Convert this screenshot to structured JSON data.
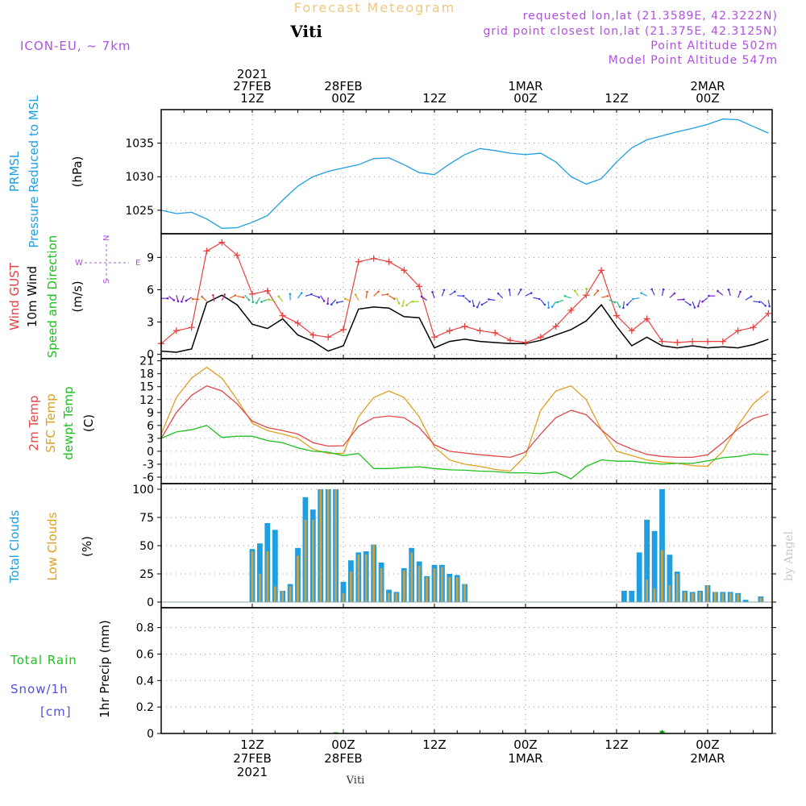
{
  "header": {
    "title": "Forecast Meteogram",
    "place": "Viti",
    "model": "ICON-EU, ~ 7km",
    "requested": "requested lon,lat (21.3589E, 42.3222N)",
    "gridpoint": "grid point closest lon,lat (21.375E, 42.3125N)",
    "point_alt": "Point Altitude 502m",
    "model_alt": "Model Point Altitude 547m"
  },
  "footer_place": "Viti",
  "watermark": "by Angel",
  "time_axis": {
    "ticks": [
      {
        "t": 12,
        "lines": [
          "2021",
          "27FEB",
          "12Z"
        ],
        "bottom": [
          "12Z",
          "27FEB",
          "2021"
        ]
      },
      {
        "t": 24,
        "lines": [
          "28FEB",
          "00Z"
        ],
        "bottom": [
          "00Z",
          "28FEB"
        ]
      },
      {
        "t": 36,
        "lines": [
          "12Z"
        ],
        "bottom": [
          "12Z"
        ]
      },
      {
        "t": 48,
        "lines": [
          "1MAR",
          "00Z"
        ],
        "bottom": [
          "00Z",
          "1MAR"
        ]
      },
      {
        "t": 60,
        "lines": [
          "12Z"
        ],
        "bottom": [
          "12Z"
        ]
      },
      {
        "t": 72,
        "lines": [
          "2MAR",
          "00Z"
        ],
        "bottom": [
          "00Z",
          "2MAR"
        ]
      }
    ]
  },
  "panels": {
    "pressure": {
      "labels": [
        "PRMSL",
        "Pressure Reduced to MSL"
      ],
      "unit": "(hPa)",
      "yticks": [
        1025,
        1030,
        1035
      ]
    },
    "wind": {
      "labels": [
        "Wind GUST",
        "10m Wind",
        "Speed and Direction"
      ],
      "unit": "(m/s)",
      "yticks": [
        0,
        3,
        6,
        9
      ],
      "compass": {
        "n": "N",
        "s": "S",
        "w": "W",
        "e": "E"
      }
    },
    "temp": {
      "labels": [
        "2m Temp",
        "SFC Temp",
        "dewpt Temp"
      ],
      "unit": "(C)",
      "yticks": [
        -6,
        -3,
        0,
        3,
        6,
        9,
        12,
        15,
        18,
        21
      ]
    },
    "clouds": {
      "labels": [
        "Total Clouds",
        "Low Clouds"
      ],
      "unit": "(%)",
      "yticks": [
        0,
        25,
        50,
        75,
        100
      ]
    },
    "precip": {
      "labels": [
        "Total  Rain",
        "Snow/1h",
        "[cm]"
      ],
      "unit": "1hr Precip (mm)",
      "yticks": [
        "0",
        "0.2",
        "0.4",
        "0.6",
        "0.8"
      ]
    }
  },
  "colors": {
    "pressure": "#1f9fe0",
    "gust": "#e84040",
    "wind": "#000000",
    "temp2m": "#e04848",
    "sfc": "#e0a020",
    "dewpt": "#20c020",
    "total": "#1f9fe0",
    "low": "#d0a040",
    "title": "#f0c878",
    "info": "#b050e0",
    "rain": "#20c020",
    "snow": "#5050e0"
  },
  "chart_data": [
    {
      "type": "line",
      "name": "pressure",
      "x_unit": "hours since 27FEB 00Z",
      "ylim": [
        1021.5,
        1040
      ],
      "series": [
        {
          "x": [
            0,
            2,
            4,
            6,
            8,
            10,
            12,
            14,
            16,
            18,
            20,
            22,
            24,
            26,
            28,
            30,
            32,
            34,
            36,
            38,
            40,
            42,
            44,
            46,
            48,
            50,
            52,
            54,
            56,
            58,
            60,
            62,
            64,
            66,
            68,
            70,
            72,
            74,
            76,
            78,
            80
          ],
          "values": [
            1025,
            1024.5,
            1024.7,
            1023.7,
            1022.3,
            1022.4,
            1023.2,
            1024.2,
            1026.5,
            1028.6,
            1030,
            1030.8,
            1031.3,
            1031.8,
            1032.7,
            1032.8,
            1031.8,
            1030.6,
            1030.3,
            1031.9,
            1033.3,
            1034.2,
            1033.9,
            1033.5,
            1033.3,
            1033.5,
            1032.2,
            1030,
            1028.9,
            1029.7,
            1032.2,
            1034.3,
            1035.5,
            1036.1,
            1036.7,
            1037.2,
            1037.8,
            1038.6,
            1038.5,
            1037.5,
            1036.5
          ]
        }
      ]
    },
    {
      "type": "line",
      "name": "wind",
      "x_unit": "hours since 27FEB 00Z",
      "ylim": [
        -0.4,
        11.2
      ],
      "series": [
        {
          "name": "Wind GUST",
          "x": [
            0,
            2,
            4,
            6,
            8,
            10,
            12,
            14,
            16,
            18,
            20,
            22,
            24,
            26,
            28,
            30,
            32,
            34,
            36,
            38,
            40,
            42,
            44,
            46,
            48,
            50,
            52,
            54,
            56,
            58,
            60,
            62,
            64,
            66,
            68,
            70,
            72,
            74,
            76,
            78,
            80
          ],
          "values": [
            1,
            2.2,
            2.5,
            9.6,
            10.4,
            9.2,
            5.6,
            5.9,
            3.6,
            2.9,
            1.8,
            1.6,
            2.3,
            8.6,
            8.9,
            8.6,
            7.8,
            6.3,
            1.6,
            2.2,
            2.6,
            2.2,
            2,
            1.3,
            1.1,
            1.6,
            2.6,
            4.1,
            5.5,
            7.8,
            3.6,
            2.2,
            3.3,
            1.2,
            1.1,
            1.2,
            1.2,
            1.2,
            2.2,
            2.5,
            3.8
          ]
        },
        {
          "name": "10m Wind",
          "x": [
            0,
            2,
            4,
            6,
            8,
            10,
            12,
            14,
            16,
            18,
            20,
            22,
            24,
            26,
            28,
            30,
            32,
            34,
            36,
            38,
            40,
            42,
            44,
            46,
            48,
            50,
            52,
            54,
            56,
            58,
            60,
            62,
            64,
            66,
            68,
            70,
            72,
            74,
            76,
            78,
            80
          ],
          "values": [
            0.3,
            0.2,
            0.5,
            4.8,
            5.5,
            4.6,
            2.8,
            2.4,
            3.3,
            1.8,
            1.2,
            0.3,
            0.8,
            4.2,
            4.4,
            4.3,
            3.5,
            3.4,
            0.6,
            1.2,
            1.4,
            1.2,
            1.1,
            1,
            1,
            1.3,
            1.8,
            2.3,
            3.1,
            4.6,
            2.6,
            0.8,
            1.6,
            0.8,
            0.6,
            0.8,
            0.6,
            0.7,
            0.6,
            0.9,
            1.4
          ]
        }
      ]
    },
    {
      "type": "line",
      "name": "temperature",
      "x_unit": "hours since 27FEB 00Z",
      "ylim": [
        -7.5,
        21.5
      ],
      "series": [
        {
          "name": "2m Temp",
          "x": [
            0,
            2,
            4,
            6,
            8,
            10,
            12,
            14,
            16,
            18,
            20,
            22,
            24,
            26,
            28,
            30,
            32,
            34,
            36,
            38,
            40,
            42,
            44,
            46,
            48,
            50,
            52,
            54,
            56,
            58,
            60,
            62,
            64,
            66,
            68,
            70,
            72,
            74,
            76,
            78,
            80
          ],
          "values": [
            3,
            9,
            13,
            15.2,
            14,
            11,
            7,
            5.5,
            4.8,
            4,
            2,
            1.2,
            1.3,
            5.8,
            7.8,
            8.2,
            7.8,
            5.5,
            1.5,
            0,
            -0.4,
            -0.8,
            -1.1,
            -1.4,
            -0.2,
            4,
            7.8,
            9.5,
            8.5,
            5,
            2,
            0.5,
            -0.7,
            -1.2,
            -1.4,
            -1.4,
            -0.8,
            2,
            5.2,
            7.6,
            8.6
          ]
        },
        {
          "name": "SFC Temp",
          "x": [
            0,
            2,
            4,
            6,
            8,
            10,
            12,
            14,
            16,
            18,
            20,
            22,
            24,
            26,
            28,
            30,
            32,
            34,
            36,
            38,
            40,
            42,
            44,
            46,
            48,
            50,
            52,
            54,
            56,
            58,
            60,
            62,
            64,
            66,
            68,
            70,
            72,
            74,
            76,
            78,
            80
          ],
          "values": [
            4,
            12.5,
            17,
            19.5,
            17,
            12,
            6.5,
            4.8,
            4,
            3,
            0.5,
            -0.5,
            -0.5,
            8,
            12.5,
            14,
            12.5,
            8,
            1,
            -2,
            -3,
            -3.5,
            -4.2,
            -4.6,
            -1,
            9.5,
            14,
            15.2,
            12,
            5,
            0,
            -1,
            -2,
            -2.5,
            -2.8,
            -3.3,
            -3.5,
            0,
            6,
            11,
            14
          ]
        },
        {
          "name": "dewpt Temp",
          "x": [
            0,
            2,
            4,
            6,
            8,
            10,
            12,
            14,
            16,
            18,
            20,
            22,
            24,
            26,
            28,
            30,
            32,
            34,
            36,
            38,
            40,
            42,
            44,
            46,
            48,
            50,
            52,
            54,
            56,
            58,
            60,
            62,
            64,
            66,
            68,
            70,
            72,
            74,
            76,
            78,
            80
          ],
          "values": [
            3,
            4.5,
            5,
            6,
            3.2,
            3.5,
            3.5,
            2.5,
            2,
            0.8,
            0,
            -0.2,
            -1,
            -0.5,
            -4,
            -4,
            -3.8,
            -3.6,
            -4,
            -4.3,
            -4.4,
            -4.6,
            -4.7,
            -5,
            -5,
            -5.2,
            -4.8,
            -6.4,
            -3.5,
            -2,
            -2.3,
            -2.3,
            -2.7,
            -3,
            -2.8,
            -2.8,
            -2.2,
            -1.5,
            -1.2,
            -0.6,
            -0.8
          ]
        }
      ]
    },
    {
      "type": "bar",
      "name": "clouds",
      "x_unit": "hours since 27FEB 00Z",
      "ylim": [
        -5,
        105
      ],
      "series": [
        {
          "name": "Total Clouds",
          "x": [
            12,
            13,
            14,
            15,
            16,
            17,
            18,
            19,
            20,
            21,
            22,
            23,
            24,
            25,
            26,
            27,
            28,
            29,
            30,
            31,
            32,
            33,
            34,
            35,
            36,
            37,
            38,
            39,
            40,
            61,
            62,
            63,
            64,
            65,
            66,
            67,
            68,
            69,
            70,
            71,
            72,
            73,
            74,
            75,
            76,
            77,
            78,
            79
          ],
          "values": [
            47,
            52,
            70,
            64,
            10,
            16,
            48,
            93,
            82,
            100,
            100,
            100,
            18,
            37,
            44,
            45,
            51,
            35,
            11,
            9,
            30,
            48,
            36,
            23,
            33,
            33,
            25,
            24,
            16,
            10,
            10,
            44,
            73,
            63,
            100,
            42,
            27,
            10,
            9,
            10,
            15,
            9,
            9,
            9,
            8,
            2,
            0,
            5
          ]
        },
        {
          "name": "Low Clouds",
          "x": [
            12,
            13,
            14,
            15,
            16,
            17,
            18,
            19,
            20,
            21,
            22,
            23,
            24,
            25,
            26,
            27,
            28,
            29,
            30,
            31,
            32,
            33,
            34,
            35,
            36,
            37,
            38,
            39,
            40,
            61,
            62,
            63,
            64,
            65,
            66,
            67,
            68,
            69,
            70,
            71,
            72,
            73,
            74,
            75,
            76,
            77,
            78,
            79
          ],
          "values": [
            45,
            25,
            45,
            14,
            10,
            14,
            41,
            73,
            73,
            100,
            100,
            100,
            8,
            27,
            42,
            42,
            51,
            30,
            8,
            8,
            28,
            44,
            32,
            22,
            30,
            31,
            22,
            22,
            16,
            0,
            0,
            0,
            20,
            12,
            46,
            15,
            25,
            9,
            8,
            9,
            15,
            9,
            8,
            8,
            7,
            0,
            0,
            4
          ]
        }
      ]
    },
    {
      "type": "bar",
      "name": "precipitation",
      "x_unit": "hours since 27FEB 00Z",
      "ylim": [
        0,
        0.95
      ],
      "series": [
        {
          "name": "Total Rain",
          "x": [
            23,
            66
          ],
          "values": [
            0.004,
            0.02
          ]
        }
      ]
    }
  ]
}
